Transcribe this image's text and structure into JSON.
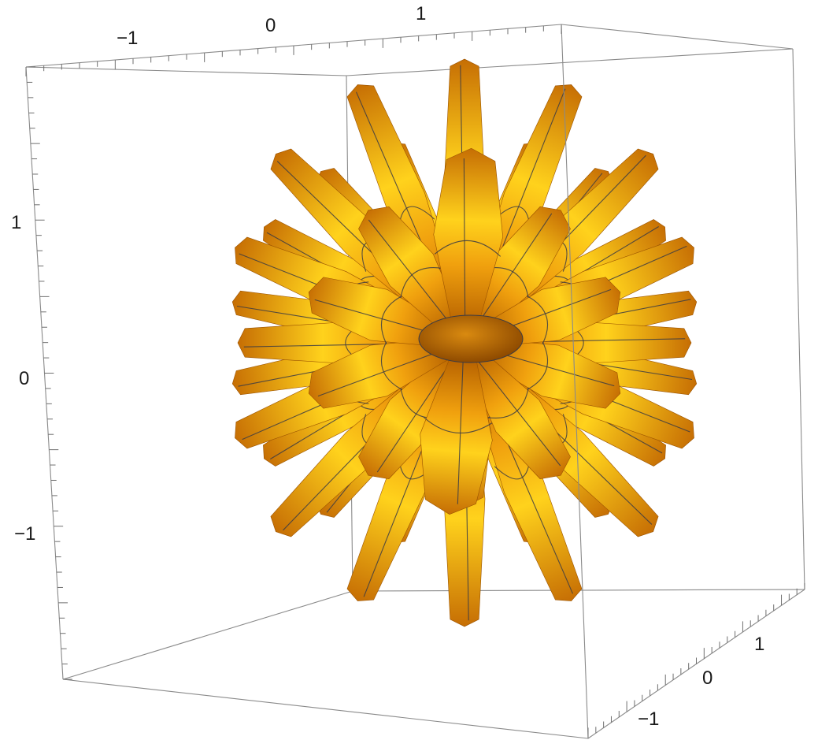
{
  "chart_data": {
    "type": "3d-surface",
    "title": "",
    "colors": {
      "surface_base": "#e8940c",
      "surface_highlight": "#ffd21c",
      "surface_shadow": "#a85a00",
      "box": "#8a8a8a",
      "mesh": "#3b3b44"
    },
    "axes": {
      "x": {
        "range": [
          -1.5,
          1.5
        ],
        "ticks": [
          -1,
          0,
          1
        ],
        "labels": [
          "−1",
          "0",
          "1"
        ]
      },
      "y": {
        "range": [
          -1.5,
          1.5
        ],
        "ticks": [
          -1,
          0,
          1
        ],
        "labels": [
          "−1",
          "0",
          "1"
        ]
      },
      "z": {
        "range": [
          -1.5,
          1.5
        ],
        "ticks": [
          -1,
          0,
          1
        ],
        "labels": [
          "−1",
          "0",
          "1"
        ]
      }
    },
    "box": true,
    "mesh": true
  }
}
